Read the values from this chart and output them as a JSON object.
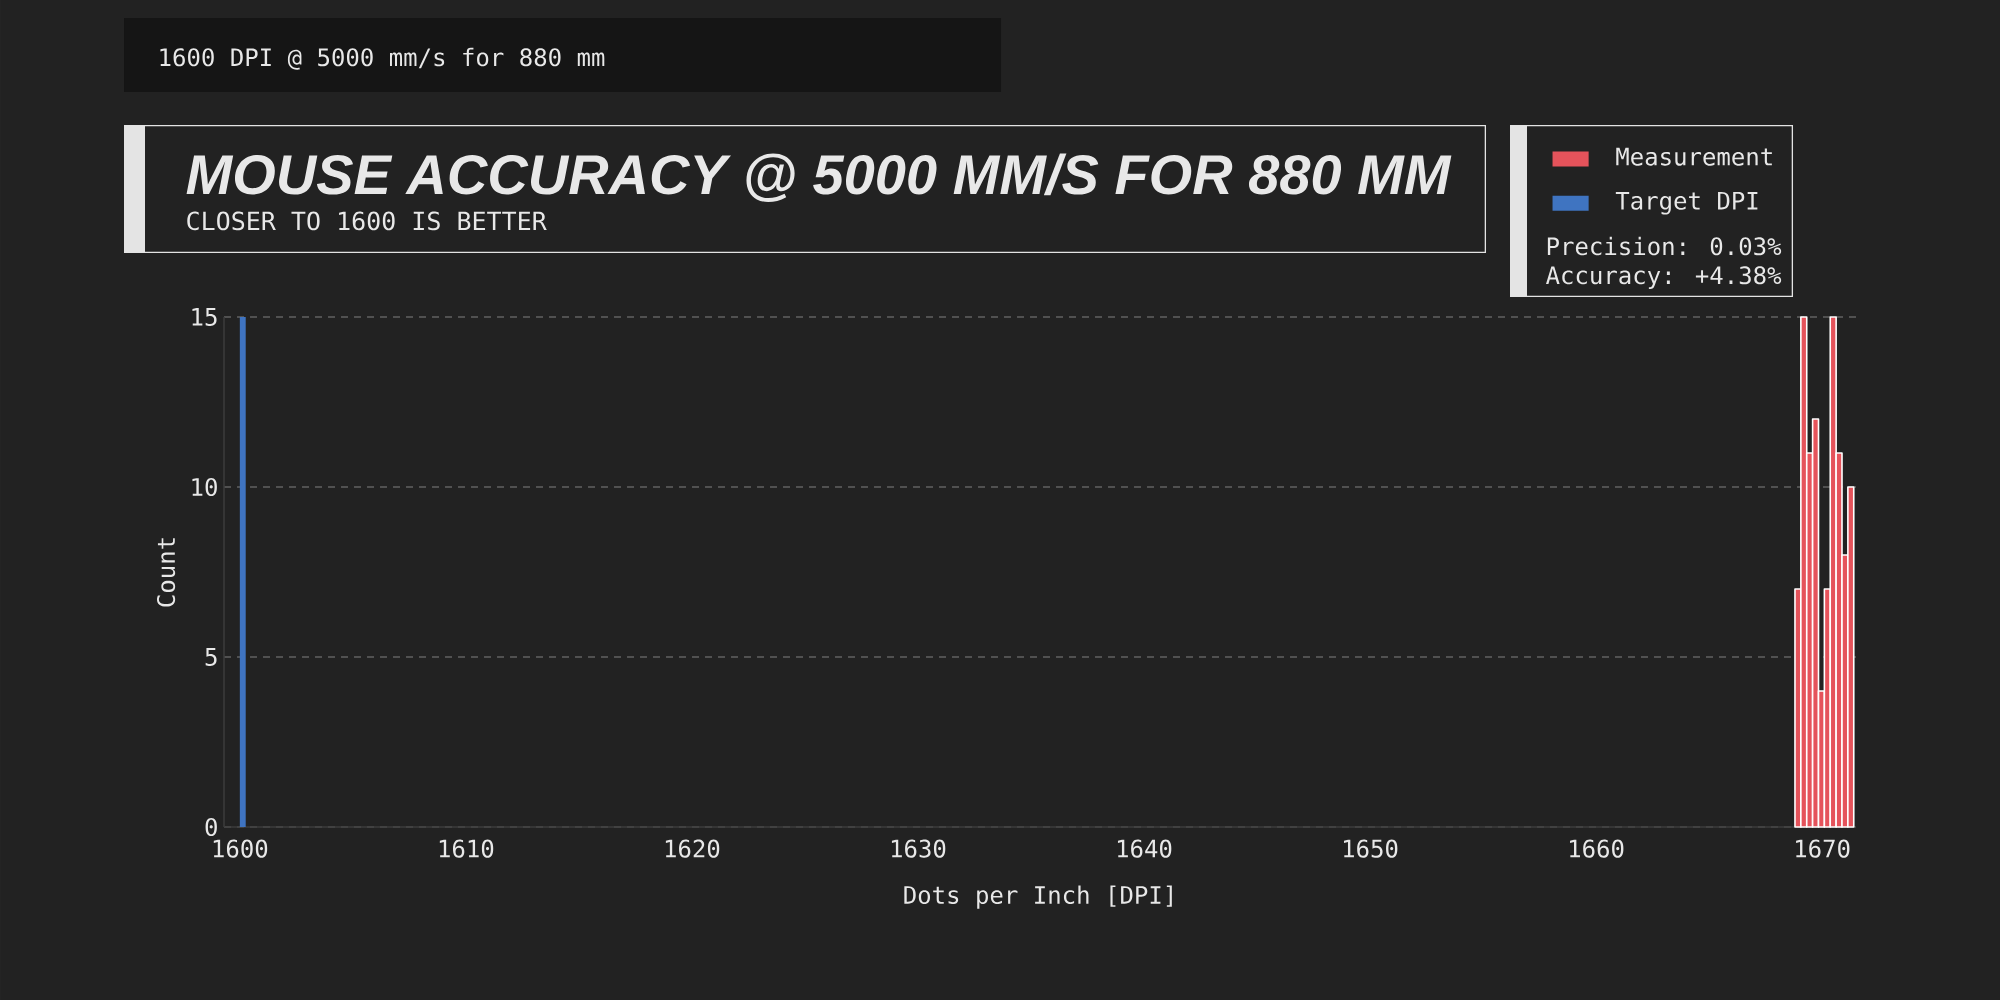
{
  "chart_data": {
    "type": "histogram",
    "title": "MOUSE ACCURACY @ 5000 MM/S FOR 880 MM",
    "subtitle": "CLOSER TO 1600 IS BETTER",
    "xlabel": "Dots per Inch [DPI]",
    "ylabel": "Count",
    "annotations": [
      "1600 DPI @ 5000 mm/s for 880 mm",
      "Precision: 0.03%",
      "Accuracy: +4.38%"
    ],
    "bins": [
      1668.8,
      1669.06,
      1669.32,
      1669.58,
      1669.84,
      1670.1,
      1670.36,
      1670.62,
      1670.88,
      1671.14,
      1671.4
    ],
    "series": [
      {
        "name": "Measurement",
        "color": "#e5535b",
        "values": [
          7,
          15,
          11,
          12,
          4,
          7,
          15,
          11,
          8,
          10
        ]
      }
    ],
    "bands": [
      {
        "axis": "x",
        "from": 1600,
        "to": 1600.26,
        "label": "Target DPI",
        "color": "#3f74c1"
      }
    ],
    "xlim": [
      1599.3,
      1671.5
    ],
    "ylim": [
      0,
      15
    ],
    "xticks": [
      1600,
      1610,
      1620,
      1630,
      1640,
      1650,
      1660,
      1670
    ],
    "yticks": [
      0,
      5,
      10,
      15
    ],
    "grid": "y",
    "legend": "top right"
  }
}
